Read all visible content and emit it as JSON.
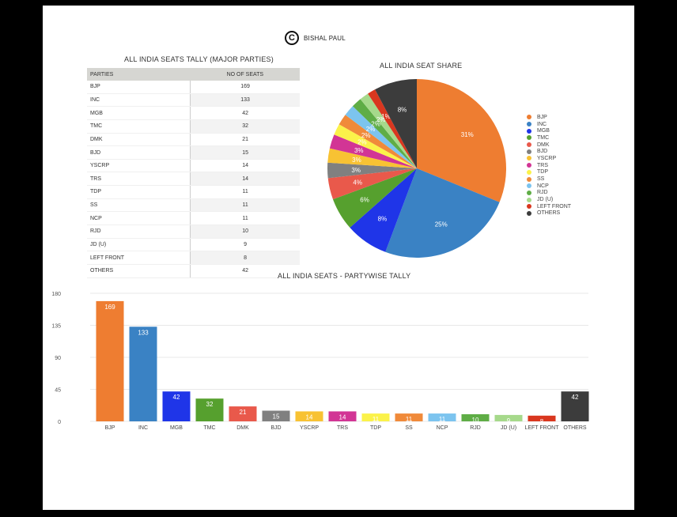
{
  "credit": {
    "icon": "copyright-icon",
    "text": "BISHAL PAUL"
  },
  "table": {
    "title": "ALL INDIA SEATS TALLY (MAJOR PARTIES)",
    "headers": [
      "PARTIES",
      "NO OF SEATS"
    ],
    "rows": [
      [
        "BJP",
        "169"
      ],
      [
        "INC",
        "133"
      ],
      [
        "MGB",
        "42"
      ],
      [
        "TMC",
        "32"
      ],
      [
        "DMK",
        "21"
      ],
      [
        "BJD",
        "15"
      ],
      [
        "YSCRP",
        "14"
      ],
      [
        "TRS",
        "14"
      ],
      [
        "TDP",
        "11"
      ],
      [
        "SS",
        "11"
      ],
      [
        "NCP",
        "11"
      ],
      [
        "RJD",
        "10"
      ],
      [
        "JD (U)",
        "9"
      ],
      [
        "LEFT FRONT",
        "8"
      ],
      [
        "OTHERS",
        "42"
      ]
    ]
  },
  "pie": {
    "title": "ALL INDIA SEAT SHARE"
  },
  "bar": {
    "title": "ALL INDIA SEATS - PARTYWISE TALLY"
  },
  "colors": {
    "BJP": "#ee7d31",
    "INC": "#3a82c4",
    "MGB": "#1f35e8",
    "TMC": "#56a02e",
    "DMK": "#e9594b",
    "BJD": "#808080",
    "YSCRP": "#f8c233",
    "TRS": "#d23595",
    "TDP": "#fbf24a",
    "SS": "#f08a3a",
    "NCP": "#7cc4ef",
    "RJD": "#5fad46",
    "JD (U)": "#a6d98b",
    "LEFT FRONT": "#d9371f",
    "OTHERS": "#3c3c3c"
  },
  "chart_data": [
    {
      "type": "table",
      "title": "ALL INDIA SEATS TALLY (MAJOR PARTIES)",
      "columns": [
        "PARTIES",
        "NO OF SEATS"
      ],
      "rows": [
        [
          "BJP",
          169
        ],
        [
          "INC",
          133
        ],
        [
          "MGB",
          42
        ],
        [
          "TMC",
          32
        ],
        [
          "DMK",
          21
        ],
        [
          "BJD",
          15
        ],
        [
          "YSCRP",
          14
        ],
        [
          "TRS",
          14
        ],
        [
          "TDP",
          11
        ],
        [
          "SS",
          11
        ],
        [
          "NCP",
          11
        ],
        [
          "RJD",
          10
        ],
        [
          "JD (U)",
          9
        ],
        [
          "LEFT FRONT",
          8
        ],
        [
          "OTHERS",
          42
        ]
      ]
    },
    {
      "type": "pie",
      "title": "ALL INDIA SEAT SHARE",
      "categories": [
        "BJP",
        "INC",
        "MGB",
        "TMC",
        "DMK",
        "BJD",
        "YSCRP",
        "TRS",
        "TDP",
        "SS",
        "NCP",
        "RJD",
        "JD (U)",
        "LEFT FRONT",
        "OTHERS"
      ],
      "values": [
        169,
        133,
        42,
        32,
        21,
        15,
        14,
        14,
        11,
        11,
        11,
        10,
        9,
        8,
        42
      ],
      "labels": [
        "31%",
        "25%",
        "8%",
        "6%",
        "4%",
        "3%",
        "3%",
        "3%",
        "2%",
        "2%",
        "2%",
        "2%",
        "2%",
        "1%",
        "8%"
      ],
      "legend_position": "right"
    },
    {
      "type": "bar",
      "title": "ALL INDIA SEATS - PARTYWISE TALLY",
      "categories": [
        "BJP",
        "INC",
        "MGB",
        "TMC",
        "DMK",
        "BJD",
        "YSCRP",
        "TRS",
        "TDP",
        "SS",
        "NCP",
        "RJD",
        "JD (U)",
        "LEFT FRONT",
        "OTHERS"
      ],
      "values": [
        169,
        133,
        42,
        32,
        21,
        15,
        14,
        14,
        11,
        11,
        11,
        10,
        9,
        8,
        42
      ],
      "xlabel": "",
      "ylabel": "",
      "ylim": [
        0,
        180
      ],
      "yticks": [
        0,
        45,
        90,
        135,
        180
      ],
      "grid": true,
      "data_labels": true
    }
  ]
}
